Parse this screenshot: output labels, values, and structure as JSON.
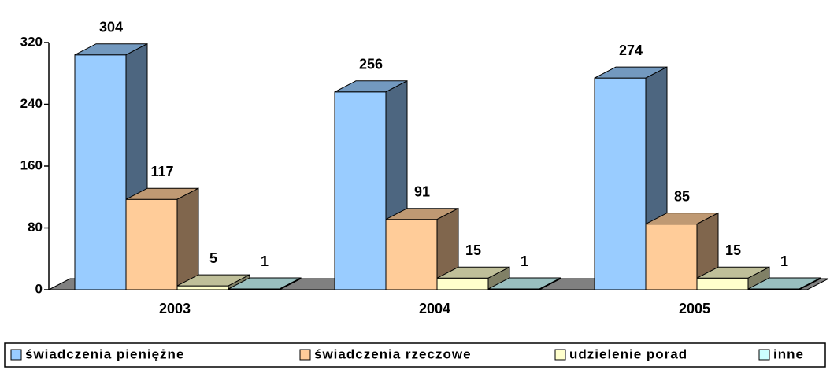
{
  "chart_data": {
    "type": "bar3d",
    "categories": [
      "2003",
      "2004",
      "2005"
    ],
    "series": [
      {
        "name": "świadczenia pieniężne",
        "color": "#99ccff",
        "values": [
          304,
          256,
          274
        ]
      },
      {
        "name": "świadczenia rzeczowe",
        "color": "#ffcc99",
        "values": [
          117,
          91,
          85
        ]
      },
      {
        "name": "udzielenie porad",
        "color": "#ffffcc",
        "values": [
          5,
          15,
          15
        ]
      },
      {
        "name": "inne",
        "color": "#ccffff",
        "values": [
          1,
          1,
          1
        ]
      }
    ],
    "ylim": [
      0,
      320
    ],
    "yticks": [
      0,
      80,
      160,
      240,
      320
    ],
    "legend": "bottom"
  }
}
